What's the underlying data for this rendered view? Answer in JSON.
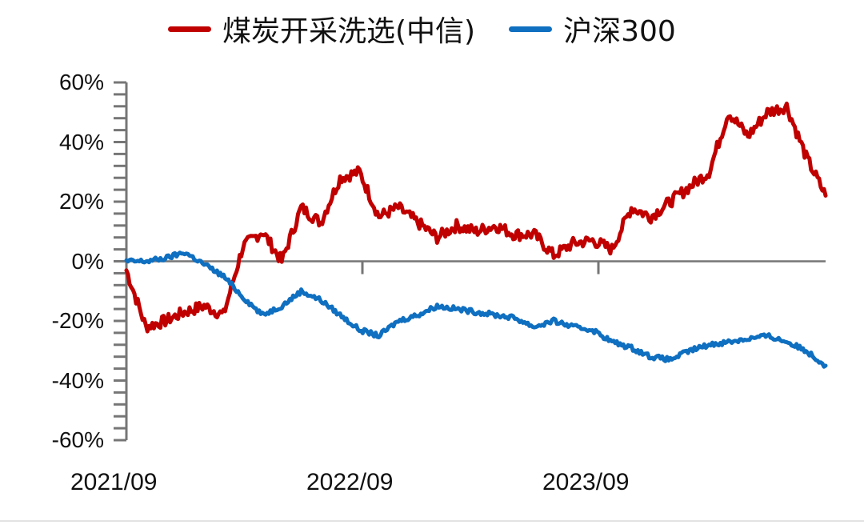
{
  "legend": [
    {
      "label": "煤炭开采洗选(中信)",
      "color": "#c00000"
    },
    {
      "label": "沪深300",
      "color": "#0f6fc0"
    }
  ],
  "y_axis": {
    "ticks": [
      "60%",
      "40%",
      "20%",
      "0%",
      "-20%",
      "-40%",
      "-60%"
    ]
  },
  "x_axis": {
    "ticks": [
      "2021/09",
      "2022/09",
      "2023/09"
    ]
  },
  "chart_data": {
    "type": "line",
    "title": "",
    "xlabel": "",
    "ylabel": "",
    "ylim": [
      -60,
      60
    ],
    "y_ticks": [
      60,
      40,
      20,
      0,
      -20,
      -40,
      -60
    ],
    "x_ticks": [
      "2021/09",
      "2022/09",
      "2023/09"
    ],
    "legend_position": "top",
    "grid": false,
    "x": [
      "2021/09",
      "2021/10",
      "2021/11",
      "2021/12",
      "2022/01",
      "2022/02",
      "2022/03",
      "2022/04",
      "2022/05",
      "2022/06",
      "2022/07",
      "2022/08",
      "2022/09",
      "2022/10",
      "2022/11",
      "2022/12",
      "2023/01",
      "2023/02",
      "2023/03",
      "2023/04",
      "2023/05",
      "2023/06",
      "2023/07",
      "2023/08",
      "2023/09",
      "2023/10",
      "2023/11",
      "2023/12",
      "2024/01",
      "2024/02",
      "2024/03",
      "2024/04",
      "2024/05",
      "2024/06",
      "2024/07",
      "2024/08",
      "2024/09"
    ],
    "series": [
      {
        "name": "煤炭开采洗选(中信)",
        "color": "#c00000",
        "values": [
          -3,
          -22,
          -20,
          -17,
          -15,
          -18,
          5,
          10,
          0,
          18,
          13,
          28,
          30,
          15,
          18,
          13,
          8,
          12,
          10,
          12,
          9,
          9,
          2,
          6,
          7,
          4,
          18,
          15,
          20,
          25,
          30,
          50,
          42,
          50,
          52,
          35,
          22
        ]
      },
      {
        "name": "沪深300",
        "color": "#0f6fc0",
        "values": [
          0,
          0,
          1,
          3,
          -1,
          -5,
          -12,
          -18,
          -15,
          -10,
          -13,
          -18,
          -23,
          -25,
          -20,
          -18,
          -15,
          -16,
          -17,
          -18,
          -19,
          -22,
          -20,
          -22,
          -23,
          -27,
          -29,
          -32,
          -33,
          -30,
          -28,
          -27,
          -26,
          -25,
          -27,
          -30,
          -35
        ]
      }
    ]
  }
}
